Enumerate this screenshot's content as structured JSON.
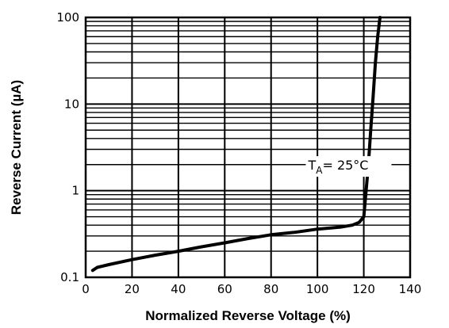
{
  "chart_data": {
    "type": "line",
    "title": "",
    "xlabel": "Normalized Reverse Voltage (%)",
    "ylabel": "Reverse Current (µA)",
    "xlim": [
      0,
      140
    ],
    "ylim": [
      0.1,
      100
    ],
    "yscale": "log",
    "grid": true,
    "x_ticks": [
      0,
      20,
      40,
      60,
      80,
      100,
      120,
      140
    ],
    "x_tick_labels": [
      "0",
      "20",
      "40",
      "60",
      "80",
      "100",
      "120",
      "140"
    ],
    "y_ticks": [
      0.1,
      1,
      10,
      100
    ],
    "y_tick_labels": [
      "0.1",
      "1",
      "10",
      "100"
    ],
    "annotation": {
      "text_main": "T",
      "text_sub": "A",
      "text_rest": "= 25°C",
      "x": 96,
      "y": 1.75
    },
    "series": [
      {
        "color": "#000000",
        "x": [
          3,
          5,
          10,
          20,
          30,
          40,
          50,
          60,
          70,
          80,
          90,
          100,
          110,
          115,
          118,
          120,
          121,
          122,
          123,
          124,
          125,
          126,
          127
        ],
        "y": [
          0.12,
          0.13,
          0.14,
          0.16,
          0.18,
          0.2,
          0.225,
          0.25,
          0.28,
          0.31,
          0.33,
          0.36,
          0.38,
          0.4,
          0.43,
          0.5,
          1.0,
          2.0,
          5.0,
          12,
          30,
          60,
          100
        ]
      }
    ]
  }
}
